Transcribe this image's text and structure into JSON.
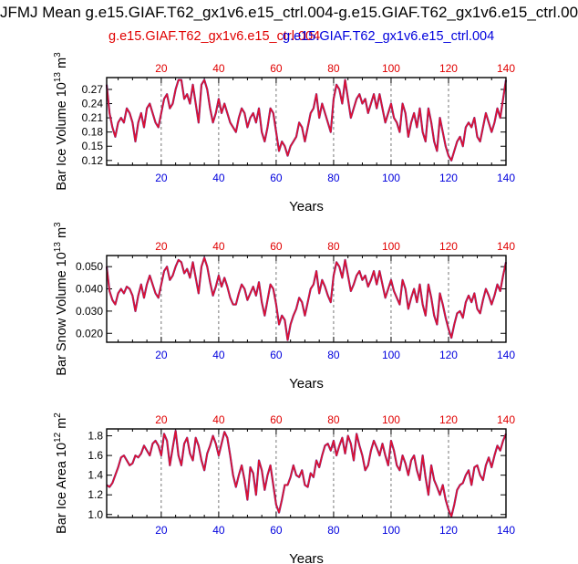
{
  "title": "JFMJ Mean g.e15.GIAF.T62_gx1v6.e15_ctrl.004-g.e15.GIAF.T62_gx1v6.e15_ctrl.00",
  "subtitles": {
    "left": "g.e15.GIAF.T62_gx1v6.e15_ctrl.004",
    "right": "g.e15.GIAF.T62_gx1v6.e15_ctrl.004"
  },
  "colors": {
    "top_axis": "#e00000",
    "bottom_axis": "#0000dd",
    "series": [
      "#1f4fd0",
      "#dd1133"
    ],
    "grid": "#555555"
  },
  "chart_data": [
    {
      "type": "line",
      "ylabel": "Bar Ice Volume 10",
      "ylabel_sup": "13",
      "ylabel_unit": " m",
      "ylabel_unit_sup": "3",
      "xlabel": "Years",
      "xlim": [
        1,
        140
      ],
      "ylim": [
        0.11,
        0.295
      ],
      "yticks": [
        0.12,
        0.15,
        0.18,
        0.21,
        0.24,
        0.27
      ],
      "yticklabels": [
        "0.12",
        "0.15",
        "0.18",
        "0.21",
        "0.24",
        "0.27"
      ],
      "xticks_top": [
        "20",
        "40",
        "60",
        "80",
        "100",
        "120",
        "140"
      ],
      "xticks_bottom": [
        "20",
        "40",
        "60",
        "80",
        "100",
        "120",
        "140"
      ],
      "series": [
        {
          "name": "g.e15.GIAF.T62_gx1v6.e15_ctrl.004",
          "values": [
            0.28,
            0.22,
            0.19,
            0.17,
            0.2,
            0.21,
            0.2,
            0.23,
            0.22,
            0.2,
            0.16,
            0.2,
            0.22,
            0.19,
            0.23,
            0.24,
            0.22,
            0.2,
            0.19,
            0.22,
            0.25,
            0.26,
            0.23,
            0.24,
            0.27,
            0.29,
            0.29,
            0.25,
            0.26,
            0.24,
            0.28,
            0.24,
            0.2,
            0.28,
            0.29,
            0.27,
            0.23,
            0.2,
            0.22,
            0.25,
            0.22,
            0.24,
            0.22,
            0.2,
            0.19,
            0.18,
            0.21,
            0.23,
            0.22,
            0.19,
            0.21,
            0.22,
            0.2,
            0.23,
            0.18,
            0.16,
            0.19,
            0.23,
            0.22,
            0.18,
            0.14,
            0.16,
            0.15,
            0.13,
            0.15,
            0.16,
            0.17,
            0.2,
            0.19,
            0.16,
            0.19,
            0.22,
            0.23,
            0.26,
            0.21,
            0.24,
            0.22,
            0.2,
            0.18,
            0.25,
            0.28,
            0.27,
            0.24,
            0.29,
            0.25,
            0.21,
            0.23,
            0.25,
            0.26,
            0.24,
            0.25,
            0.22,
            0.24,
            0.26,
            0.23,
            0.26,
            0.23,
            0.2,
            0.22,
            0.24,
            0.21,
            0.2,
            0.18,
            0.24,
            0.22,
            0.17,
            0.2,
            0.22,
            0.19,
            0.23,
            0.18,
            0.16,
            0.23,
            0.2,
            0.16,
            0.14,
            0.21,
            0.18,
            0.15,
            0.13,
            0.12,
            0.14,
            0.16,
            0.17,
            0.15,
            0.19,
            0.2,
            0.19,
            0.21,
            0.17,
            0.16,
            0.19,
            0.22,
            0.2,
            0.18,
            0.2,
            0.23,
            0.21,
            0.25,
            0.29
          ]
        },
        {
          "name": "g.e15.GIAF.T62_gx1v6.e15_ctrl.004",
          "values": [
            0.28,
            0.22,
            0.19,
            0.17,
            0.2,
            0.21,
            0.2,
            0.23,
            0.22,
            0.2,
            0.16,
            0.2,
            0.22,
            0.19,
            0.23,
            0.24,
            0.22,
            0.2,
            0.19,
            0.22,
            0.25,
            0.26,
            0.23,
            0.24,
            0.27,
            0.29,
            0.29,
            0.25,
            0.26,
            0.24,
            0.28,
            0.24,
            0.2,
            0.28,
            0.29,
            0.27,
            0.23,
            0.2,
            0.22,
            0.25,
            0.22,
            0.24,
            0.22,
            0.2,
            0.19,
            0.18,
            0.21,
            0.23,
            0.22,
            0.19,
            0.21,
            0.22,
            0.2,
            0.23,
            0.18,
            0.16,
            0.19,
            0.23,
            0.22,
            0.18,
            0.14,
            0.16,
            0.15,
            0.13,
            0.15,
            0.16,
            0.17,
            0.2,
            0.19,
            0.16,
            0.19,
            0.22,
            0.23,
            0.26,
            0.21,
            0.24,
            0.22,
            0.2,
            0.18,
            0.25,
            0.28,
            0.27,
            0.24,
            0.29,
            0.25,
            0.21,
            0.23,
            0.25,
            0.26,
            0.24,
            0.25,
            0.22,
            0.24,
            0.26,
            0.23,
            0.26,
            0.23,
            0.2,
            0.22,
            0.24,
            0.21,
            0.2,
            0.18,
            0.24,
            0.22,
            0.17,
            0.2,
            0.22,
            0.19,
            0.23,
            0.18,
            0.16,
            0.23,
            0.2,
            0.16,
            0.14,
            0.21,
            0.18,
            0.15,
            0.13,
            0.12,
            0.14,
            0.16,
            0.17,
            0.15,
            0.19,
            0.2,
            0.19,
            0.21,
            0.17,
            0.16,
            0.19,
            0.22,
            0.2,
            0.18,
            0.2,
            0.23,
            0.21,
            0.25,
            0.29
          ]
        }
      ]
    },
    {
      "type": "line",
      "ylabel": "Bar Snow Volume 10",
      "ylabel_sup": "13",
      "ylabel_unit": " m",
      "ylabel_unit_sup": "3",
      "xlabel": "Years",
      "xlim": [
        1,
        140
      ],
      "ylim": [
        0.016,
        0.055
      ],
      "yticks": [
        0.02,
        0.03,
        0.04,
        0.05
      ],
      "yticklabels": [
        "0.020",
        "0.030",
        "0.040",
        "0.050"
      ],
      "xticks_top": [
        "20",
        "40",
        "60",
        "80",
        "100",
        "120",
        "140"
      ],
      "xticks_bottom": [
        "20",
        "40",
        "60",
        "80",
        "100",
        "120",
        "140"
      ],
      "series": [
        {
          "name": "g.e15.GIAF.T62_gx1v6.e15_ctrl.004",
          "values": [
            0.05,
            0.039,
            0.035,
            0.033,
            0.038,
            0.04,
            0.038,
            0.041,
            0.04,
            0.037,
            0.03,
            0.037,
            0.042,
            0.036,
            0.042,
            0.046,
            0.042,
            0.038,
            0.036,
            0.042,
            0.048,
            0.05,
            0.044,
            0.046,
            0.05,
            0.053,
            0.052,
            0.047,
            0.049,
            0.045,
            0.052,
            0.045,
            0.038,
            0.05,
            0.054,
            0.05,
            0.043,
            0.037,
            0.041,
            0.046,
            0.041,
            0.045,
            0.041,
            0.036,
            0.033,
            0.033,
            0.038,
            0.042,
            0.04,
            0.035,
            0.038,
            0.041,
            0.037,
            0.043,
            0.034,
            0.028,
            0.035,
            0.042,
            0.04,
            0.033,
            0.024,
            0.028,
            0.026,
            0.017,
            0.024,
            0.028,
            0.031,
            0.036,
            0.034,
            0.028,
            0.034,
            0.04,
            0.042,
            0.048,
            0.038,
            0.044,
            0.041,
            0.037,
            0.034,
            0.046,
            0.052,
            0.05,
            0.045,
            0.053,
            0.046,
            0.039,
            0.042,
            0.046,
            0.048,
            0.044,
            0.046,
            0.041,
            0.044,
            0.048,
            0.042,
            0.048,
            0.042,
            0.036,
            0.04,
            0.044,
            0.039,
            0.036,
            0.033,
            0.044,
            0.04,
            0.031,
            0.036,
            0.04,
            0.034,
            0.042,
            0.033,
            0.028,
            0.042,
            0.036,
            0.028,
            0.024,
            0.038,
            0.033,
            0.027,
            0.022,
            0.018,
            0.024,
            0.029,
            0.03,
            0.027,
            0.034,
            0.037,
            0.034,
            0.038,
            0.031,
            0.029,
            0.035,
            0.04,
            0.037,
            0.033,
            0.037,
            0.042,
            0.039,
            0.046,
            0.052
          ]
        },
        {
          "name": "g.e15.GIAF.T62_gx1v6.e15_ctrl.004",
          "values": [
            0.05,
            0.039,
            0.035,
            0.033,
            0.038,
            0.04,
            0.038,
            0.041,
            0.04,
            0.037,
            0.03,
            0.037,
            0.042,
            0.036,
            0.042,
            0.046,
            0.042,
            0.038,
            0.036,
            0.042,
            0.048,
            0.05,
            0.044,
            0.046,
            0.05,
            0.053,
            0.052,
            0.047,
            0.049,
            0.045,
            0.052,
            0.045,
            0.038,
            0.05,
            0.054,
            0.05,
            0.043,
            0.037,
            0.041,
            0.046,
            0.041,
            0.045,
            0.041,
            0.036,
            0.033,
            0.033,
            0.038,
            0.042,
            0.04,
            0.035,
            0.038,
            0.041,
            0.037,
            0.043,
            0.034,
            0.028,
            0.035,
            0.042,
            0.04,
            0.033,
            0.024,
            0.028,
            0.026,
            0.017,
            0.024,
            0.028,
            0.031,
            0.036,
            0.034,
            0.028,
            0.034,
            0.04,
            0.042,
            0.048,
            0.038,
            0.044,
            0.041,
            0.037,
            0.034,
            0.046,
            0.052,
            0.05,
            0.045,
            0.053,
            0.046,
            0.039,
            0.042,
            0.046,
            0.048,
            0.044,
            0.046,
            0.041,
            0.044,
            0.048,
            0.042,
            0.048,
            0.042,
            0.036,
            0.04,
            0.044,
            0.039,
            0.036,
            0.033,
            0.044,
            0.04,
            0.031,
            0.036,
            0.04,
            0.034,
            0.042,
            0.033,
            0.028,
            0.042,
            0.036,
            0.028,
            0.024,
            0.038,
            0.033,
            0.027,
            0.022,
            0.018,
            0.024,
            0.029,
            0.03,
            0.027,
            0.034,
            0.037,
            0.034,
            0.038,
            0.031,
            0.029,
            0.035,
            0.04,
            0.037,
            0.033,
            0.037,
            0.042,
            0.039,
            0.046,
            0.052
          ]
        }
      ]
    },
    {
      "type": "line",
      "ylabel": "Bar Ice Area 10",
      "ylabel_sup": "12",
      "ylabel_unit": " m",
      "ylabel_unit_sup": "2",
      "xlabel": "Years",
      "xlim": [
        1,
        140
      ],
      "ylim": [
        0.97,
        1.87
      ],
      "yticks": [
        1.0,
        1.2,
        1.4,
        1.6,
        1.8
      ],
      "yticklabels": [
        "1.0",
        "1.2",
        "1.4",
        "1.6",
        "1.8"
      ],
      "xticks_top": [
        "20",
        "40",
        "60",
        "80",
        "100",
        "120",
        "140"
      ],
      "xticks_bottom": [
        "20",
        "40",
        "60",
        "80",
        "100",
        "120",
        "140"
      ],
      "series": [
        {
          "name": "g.e15.GIAF.T62_gx1v6.e15_ctrl.004",
          "values": [
            1.3,
            1.28,
            1.32,
            1.4,
            1.48,
            1.58,
            1.6,
            1.55,
            1.5,
            1.52,
            1.6,
            1.58,
            1.62,
            1.7,
            1.65,
            1.6,
            1.72,
            1.75,
            1.7,
            1.6,
            1.82,
            1.75,
            1.5,
            1.68,
            1.85,
            1.6,
            1.5,
            1.72,
            1.78,
            1.62,
            1.55,
            1.78,
            1.7,
            1.55,
            1.45,
            1.62,
            1.7,
            1.8,
            1.72,
            1.6,
            1.72,
            1.84,
            1.78,
            1.6,
            1.4,
            1.28,
            1.4,
            1.5,
            1.35,
            1.15,
            1.48,
            1.42,
            1.2,
            1.55,
            1.45,
            1.25,
            1.4,
            1.5,
            1.3,
            1.1,
            1.02,
            1.15,
            1.3,
            1.3,
            1.38,
            1.5,
            1.4,
            1.38,
            1.45,
            1.3,
            1.28,
            1.42,
            1.38,
            1.55,
            1.48,
            1.6,
            1.7,
            1.72,
            1.65,
            1.75,
            1.6,
            1.7,
            1.78,
            1.62,
            1.8,
            1.72,
            1.55,
            1.82,
            1.7,
            1.6,
            1.45,
            1.5,
            1.65,
            1.75,
            1.68,
            1.6,
            1.72,
            1.6,
            1.5,
            1.75,
            1.65,
            1.5,
            1.45,
            1.6,
            1.52,
            1.4,
            1.55,
            1.6,
            1.45,
            1.35,
            1.6,
            1.38,
            1.2,
            1.5,
            1.35,
            1.28,
            1.2,
            1.3,
            1.15,
            1.05,
            0.98,
            1.1,
            1.25,
            1.3,
            1.32,
            1.4,
            1.45,
            1.3,
            1.48,
            1.5,
            1.4,
            1.35,
            1.5,
            1.58,
            1.48,
            1.6,
            1.7,
            1.65,
            1.75,
            1.82
          ]
        },
        {
          "name": "g.e15.GIAF.T62_gx1v6.e15_ctrl.004",
          "values": [
            1.3,
            1.28,
            1.32,
            1.4,
            1.48,
            1.58,
            1.6,
            1.55,
            1.5,
            1.52,
            1.6,
            1.58,
            1.62,
            1.7,
            1.65,
            1.6,
            1.72,
            1.75,
            1.7,
            1.6,
            1.82,
            1.75,
            1.5,
            1.68,
            1.85,
            1.6,
            1.5,
            1.72,
            1.78,
            1.62,
            1.55,
            1.78,
            1.7,
            1.55,
            1.45,
            1.62,
            1.7,
            1.8,
            1.72,
            1.6,
            1.72,
            1.84,
            1.78,
            1.6,
            1.4,
            1.28,
            1.4,
            1.5,
            1.35,
            1.15,
            1.48,
            1.42,
            1.2,
            1.55,
            1.45,
            1.25,
            1.4,
            1.5,
            1.3,
            1.1,
            1.02,
            1.15,
            1.3,
            1.3,
            1.38,
            1.5,
            1.4,
            1.38,
            1.45,
            1.3,
            1.28,
            1.42,
            1.38,
            1.55,
            1.48,
            1.6,
            1.7,
            1.72,
            1.65,
            1.75,
            1.6,
            1.7,
            1.78,
            1.62,
            1.8,
            1.72,
            1.55,
            1.82,
            1.7,
            1.6,
            1.45,
            1.5,
            1.65,
            1.75,
            1.68,
            1.6,
            1.72,
            1.6,
            1.5,
            1.75,
            1.65,
            1.5,
            1.45,
            1.6,
            1.52,
            1.4,
            1.55,
            1.6,
            1.45,
            1.35,
            1.6,
            1.38,
            1.2,
            1.5,
            1.35,
            1.28,
            1.2,
            1.3,
            1.15,
            1.05,
            0.98,
            1.1,
            1.25,
            1.3,
            1.32,
            1.4,
            1.45,
            1.3,
            1.48,
            1.5,
            1.4,
            1.35,
            1.5,
            1.58,
            1.48,
            1.6,
            1.7,
            1.65,
            1.75,
            1.82
          ]
        }
      ]
    }
  ]
}
